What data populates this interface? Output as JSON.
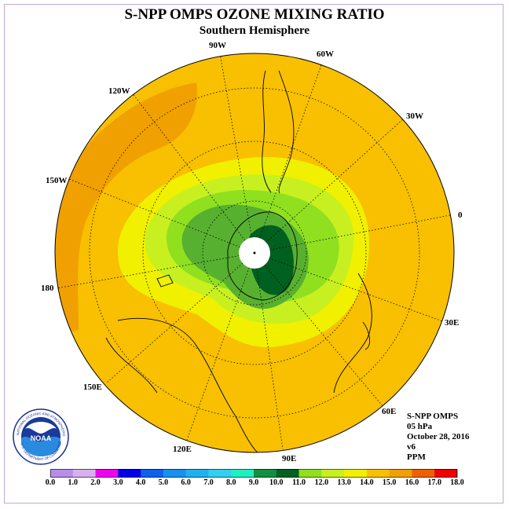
{
  "title": "S-NPP OMPS OZONE MIXING RATIO",
  "subtitle": "Southern Hemisphere",
  "longitude_labels": {
    "lon_90w": "90W",
    "lon_60w": "60W",
    "lon_30w": "30W",
    "lon_0": "0",
    "lon_30e": "30E",
    "lon_60e": "60E",
    "lon_90e": "90E",
    "lon_120e": "120E",
    "lon_150e": "150E",
    "lon_180": "180",
    "lon_150w": "150W",
    "lon_120w": "120W"
  },
  "info": {
    "line1": "S-NPP OMPS",
    "line2": "05 hPa",
    "line3": "October 28, 2016",
    "line4": "v6",
    "line5": "PPM"
  },
  "logo": {
    "text": "NOAA",
    "ring_text": "NATIONAL OCEANIC AND ATMOSPHERIC ADMINISTRATION",
    "ring_text_bottom": "U.S. DEPARTMENT OF COMMERCE"
  },
  "colorbar": {
    "labels": [
      "0.0",
      "1.0",
      "2.0",
      "3.0",
      "4.0",
      "5.0",
      "6.0",
      "7.0",
      "8.0",
      "9.0",
      "10.0",
      "11.0",
      "12.0",
      "13.0",
      "14.0",
      "15.0",
      "16.0",
      "17.0",
      "18.0"
    ],
    "colors": [
      "#b88de8",
      "#d8b0f0",
      "#f000f0",
      "#0000e6",
      "#1060f0",
      "#1890f0",
      "#20b0f0",
      "#30d0f0",
      "#20f0c0",
      "#109040",
      "#006020",
      "#90e020",
      "#c8f020",
      "#f0f000",
      "#f8c000",
      "#f0a000",
      "#f06000",
      "#f00000",
      "#905030"
    ]
  },
  "map_colors": {
    "background": "#f8c000",
    "orange_band": "#f0a000",
    "yellow": "#f0f000",
    "yellow_green": "#c8f020",
    "light_green": "#90e020",
    "mid_green": "#58b030",
    "dark_green": "#006020",
    "pole": "#ffffff"
  }
}
